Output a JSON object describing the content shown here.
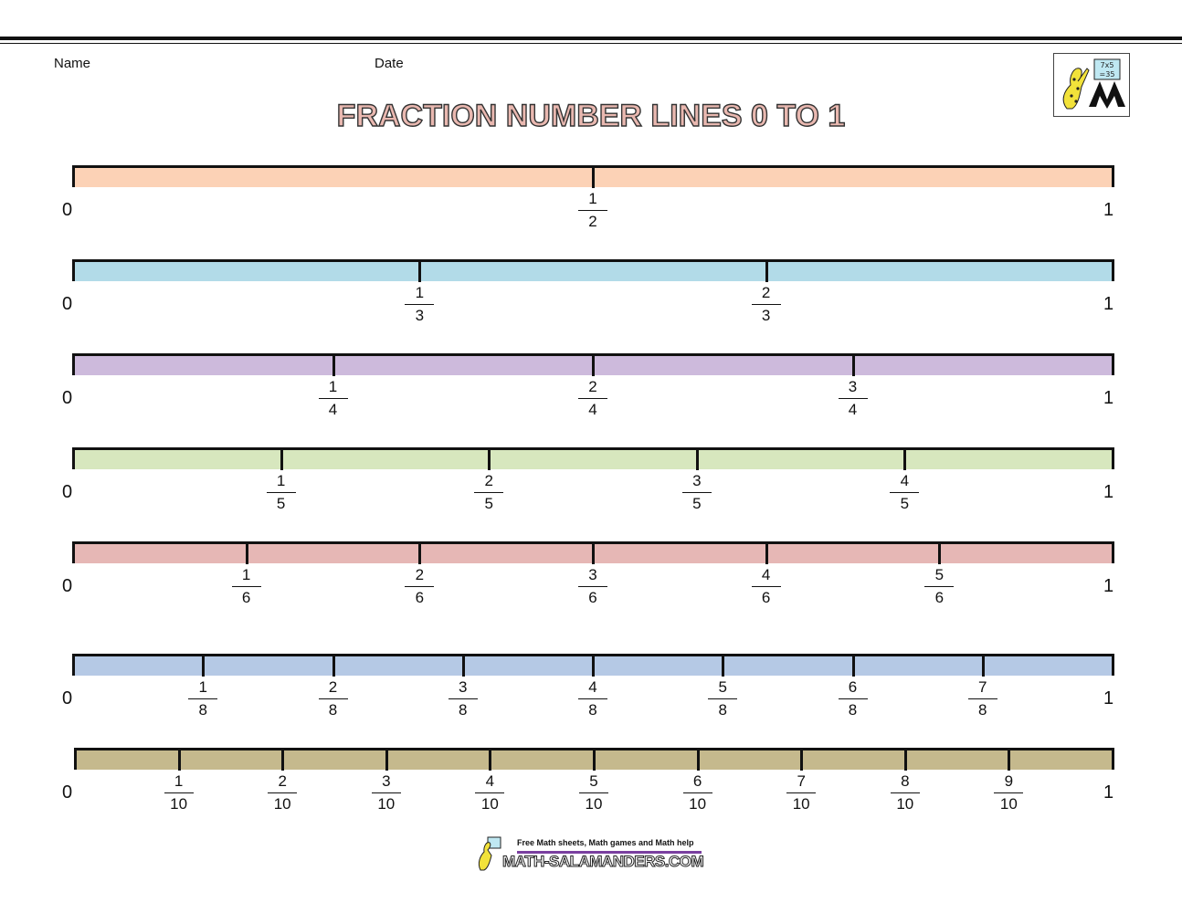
{
  "header": {
    "name_label": "Name",
    "date_label": "Date",
    "title": "FRACTION NUMBER LINES 0 TO 1"
  },
  "logo": {
    "text": "7x5 =35"
  },
  "number_lines": [
    {
      "denominator": 2,
      "color": "#fcd2b6",
      "start_label": "0",
      "end_label": "1",
      "fractions": [
        {
          "num": "1",
          "den": "2"
        }
      ]
    },
    {
      "denominator": 3,
      "color": "#b2dbe8",
      "start_label": "0",
      "end_label": "1",
      "fractions": [
        {
          "num": "1",
          "den": "3"
        },
        {
          "num": "2",
          "den": "3"
        }
      ]
    },
    {
      "denominator": 4,
      "color": "#cdbadc",
      "start_label": "0",
      "end_label": "1",
      "fractions": [
        {
          "num": "1",
          "den": "4"
        },
        {
          "num": "2",
          "den": "4"
        },
        {
          "num": "3",
          "den": "4"
        }
      ]
    },
    {
      "denominator": 5,
      "color": "#d7e7be",
      "start_label": "0",
      "end_label": "1",
      "fractions": [
        {
          "num": "1",
          "den": "5"
        },
        {
          "num": "2",
          "den": "5"
        },
        {
          "num": "3",
          "den": "5"
        },
        {
          "num": "4",
          "den": "5"
        }
      ]
    },
    {
      "denominator": 6,
      "color": "#e6b7b5",
      "start_label": "0",
      "end_label": "1",
      "fractions": [
        {
          "num": "1",
          "den": "6"
        },
        {
          "num": "2",
          "den": "6"
        },
        {
          "num": "3",
          "den": "6"
        },
        {
          "num": "4",
          "den": "6"
        },
        {
          "num": "5",
          "den": "6"
        }
      ]
    },
    {
      "denominator": 8,
      "color": "#b5c9e5",
      "start_label": "0",
      "end_label": "1",
      "fractions": [
        {
          "num": "1",
          "den": "8"
        },
        {
          "num": "2",
          "den": "8"
        },
        {
          "num": "3",
          "den": "8"
        },
        {
          "num": "4",
          "den": "8"
        },
        {
          "num": "5",
          "den": "8"
        },
        {
          "num": "6",
          "den": "8"
        },
        {
          "num": "7",
          "den": "8"
        }
      ]
    },
    {
      "denominator": 10,
      "color": "#c5b98d",
      "start_label": "0",
      "end_label": "1",
      "fractions": [
        {
          "num": "1",
          "den": "10"
        },
        {
          "num": "2",
          "den": "10"
        },
        {
          "num": "3",
          "den": "10"
        },
        {
          "num": "4",
          "den": "10"
        },
        {
          "num": "5",
          "den": "10"
        },
        {
          "num": "6",
          "den": "10"
        },
        {
          "num": "7",
          "den": "10"
        },
        {
          "num": "8",
          "den": "10"
        },
        {
          "num": "9",
          "den": "10"
        }
      ]
    }
  ],
  "footer": {
    "tagline": "Free Math sheets, Math games and Math help",
    "site": "MATH-SALAMANDERS.COM"
  }
}
